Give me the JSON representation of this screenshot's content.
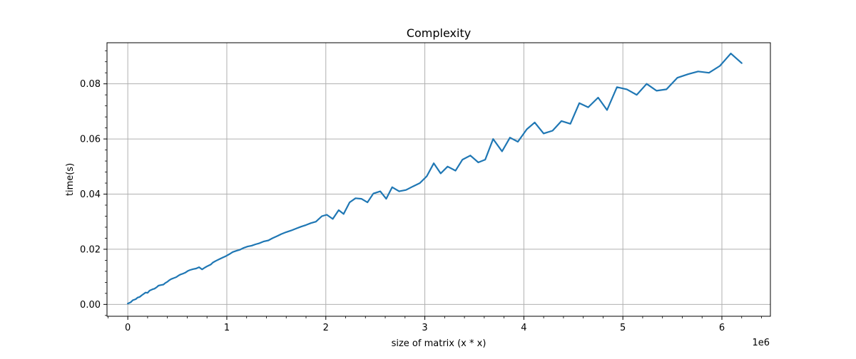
{
  "chart_data": {
    "type": "line",
    "title": "Complexity",
    "xlabel": "size of matrix (x * x)",
    "ylabel": "time(s)",
    "x_offset_label": "1e6",
    "xlim": [
      -0.21,
      6.49
    ],
    "ylim": [
      -0.0043,
      0.0949
    ],
    "x_ticks": [
      0,
      1,
      2,
      3,
      4,
      5,
      6
    ],
    "x_tick_labels": [
      "0",
      "1",
      "2",
      "3",
      "4",
      "5",
      "6"
    ],
    "x_minor_step": 0.2,
    "y_ticks": [
      0.0,
      0.02,
      0.04,
      0.06,
      0.08
    ],
    "y_tick_labels": [
      "0.00",
      "0.02",
      "0.04",
      "0.06",
      "0.08"
    ],
    "y_minor_step": 0.004,
    "grid": true,
    "series": [
      {
        "color": "#1f77b4",
        "x": [
          0.0,
          0.03,
          0.05,
          0.08,
          0.1,
          0.12,
          0.14,
          0.16,
          0.18,
          0.2,
          0.22,
          0.25,
          0.27,
          0.29,
          0.31,
          0.33,
          0.36,
          0.38,
          0.4,
          0.42,
          0.44,
          0.46,
          0.49,
          0.51,
          0.53,
          0.56,
          0.58,
          0.61,
          0.63,
          0.66,
          0.69,
          0.72,
          0.75,
          0.78,
          0.81,
          0.84,
          0.86,
          0.89,
          0.93,
          0.96,
          0.99,
          1.03,
          1.06,
          1.1,
          1.13,
          1.17,
          1.21,
          1.25,
          1.29,
          1.33,
          1.37,
          1.42,
          1.46,
          1.51,
          1.55,
          1.6,
          1.65,
          1.7,
          1.75,
          1.8,
          1.85,
          1.9,
          1.96,
          2.01,
          2.07,
          2.13,
          2.18,
          2.24,
          2.3,
          2.36,
          2.42,
          2.48,
          2.55,
          2.61,
          2.67,
          2.74,
          2.81,
          2.88,
          2.95,
          3.02,
          3.09,
          3.16,
          3.23,
          3.31,
          3.38,
          3.46,
          3.54,
          3.61,
          3.69,
          3.78,
          3.86,
          3.94,
          4.03,
          4.11,
          4.2,
          4.29,
          4.38,
          4.47,
          4.56,
          4.65,
          4.75,
          4.84,
          4.94,
          5.04,
          5.14,
          5.24,
          5.34,
          5.44,
          5.55,
          5.66,
          5.76,
          5.87,
          5.98,
          6.09,
          6.2
        ],
        "y": [
          0.0003,
          0.0008,
          0.0015,
          0.0019,
          0.0025,
          0.0027,
          0.0033,
          0.0038,
          0.0043,
          0.0042,
          0.005,
          0.0055,
          0.0057,
          0.0062,
          0.0068,
          0.007,
          0.0072,
          0.0078,
          0.0082,
          0.0088,
          0.0092,
          0.0095,
          0.0099,
          0.0104,
          0.0108,
          0.0112,
          0.0115,
          0.0122,
          0.0125,
          0.0128,
          0.013,
          0.0135,
          0.0127,
          0.0134,
          0.014,
          0.0145,
          0.0152,
          0.0158,
          0.0165,
          0.017,
          0.0175,
          0.0183,
          0.019,
          0.0195,
          0.0198,
          0.0205,
          0.021,
          0.0213,
          0.0218,
          0.0222,
          0.0228,
          0.0232,
          0.024,
          0.0248,
          0.0255,
          0.0262,
          0.0268,
          0.0275,
          0.0282,
          0.0288,
          0.0295,
          0.03,
          0.032,
          0.0325,
          0.031,
          0.0342,
          0.0328,
          0.037,
          0.0385,
          0.0383,
          0.037,
          0.0402,
          0.041,
          0.0383,
          0.0425,
          0.041,
          0.0415,
          0.0428,
          0.044,
          0.0465,
          0.0512,
          0.0475,
          0.05,
          0.0485,
          0.0525,
          0.054,
          0.0515,
          0.0525,
          0.06,
          0.0555,
          0.0605,
          0.059,
          0.0635,
          0.066,
          0.062,
          0.063,
          0.0665,
          0.0655,
          0.073,
          0.0715,
          0.075,
          0.0705,
          0.0788,
          0.078,
          0.076,
          0.08,
          0.0775,
          0.078,
          0.0822,
          0.0835,
          0.0845,
          0.084,
          0.0865,
          0.091,
          0.0875
        ]
      }
    ]
  }
}
